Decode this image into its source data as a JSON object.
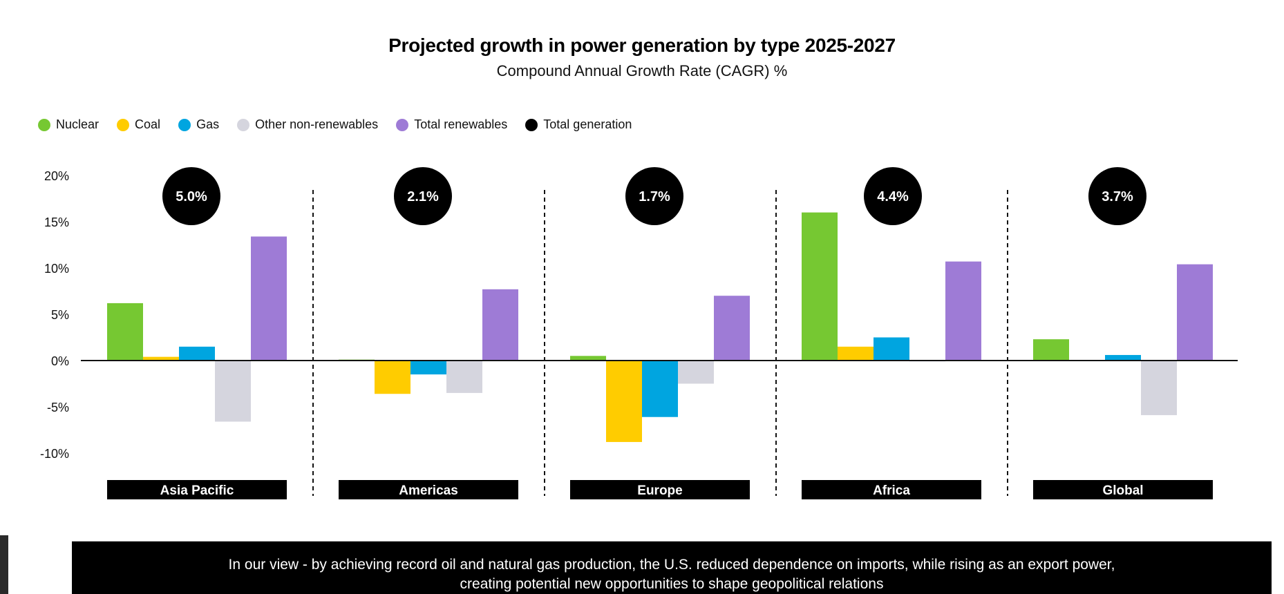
{
  "chart_data": {
    "type": "bar",
    "title": "Projected growth in power generation by type 2025-2027",
    "subtitle": "Compound Annual Growth Rate (CAGR) %",
    "xlabel": "",
    "ylabel": "",
    "ylim": [
      -10,
      20
    ],
    "yticks": [
      20,
      15,
      10,
      5,
      0,
      -5,
      -10
    ],
    "ytick_labels": [
      "20%",
      "15%",
      "10%",
      "5%",
      "0%",
      "-5%",
      "-10%"
    ],
    "grid": false,
    "legend_position": "top-left",
    "categories": [
      "Asia Pacific",
      "Americas",
      "Europe",
      "Africa",
      "Global"
    ],
    "series": [
      {
        "name": "Nuclear",
        "color": "#76c832",
        "values": [
          6.2,
          0.1,
          0.5,
          16.0,
          2.3
        ]
      },
      {
        "name": "Coal",
        "color": "#ffcc00",
        "values": [
          0.4,
          -3.6,
          -8.8,
          1.5,
          0.05
        ]
      },
      {
        "name": "Gas",
        "color": "#00a5e0",
        "values": [
          1.5,
          -1.5,
          -6.1,
          2.5,
          0.6
        ]
      },
      {
        "name": "Other non-renewables",
        "color": "#d5d5de",
        "values": [
          -6.6,
          -3.5,
          -2.5,
          -0.1,
          -5.9
        ]
      },
      {
        "name": "Total renewables",
        "color": "#9e7bd6",
        "values": [
          13.4,
          7.7,
          7.0,
          10.7,
          10.4
        ]
      }
    ],
    "total_generation": {
      "name": "Total generation",
      "color": "#000000",
      "values": [
        5.0,
        2.1,
        1.7,
        4.4,
        3.7
      ],
      "labels": [
        "5.0%",
        "2.1%",
        "1.7%",
        "4.4%",
        "3.7%"
      ]
    }
  },
  "legend": [
    {
      "label": "Nuclear",
      "color": "#76c832"
    },
    {
      "label": "Coal",
      "color": "#ffcc00"
    },
    {
      "label": "Gas",
      "color": "#00a5e0"
    },
    {
      "label": "Other non-renewables",
      "color": "#d5d5de"
    },
    {
      "label": "Total renewables",
      "color": "#9e7bd6"
    },
    {
      "label": "Total generation",
      "color": "#000000"
    }
  ],
  "banner": {
    "line1": "In our view - by achieving record oil and natural gas production, the U.S. reduced dependence on imports, while rising as an export power,",
    "line2": "creating potential new opportunities to shape geopolitical relations"
  }
}
